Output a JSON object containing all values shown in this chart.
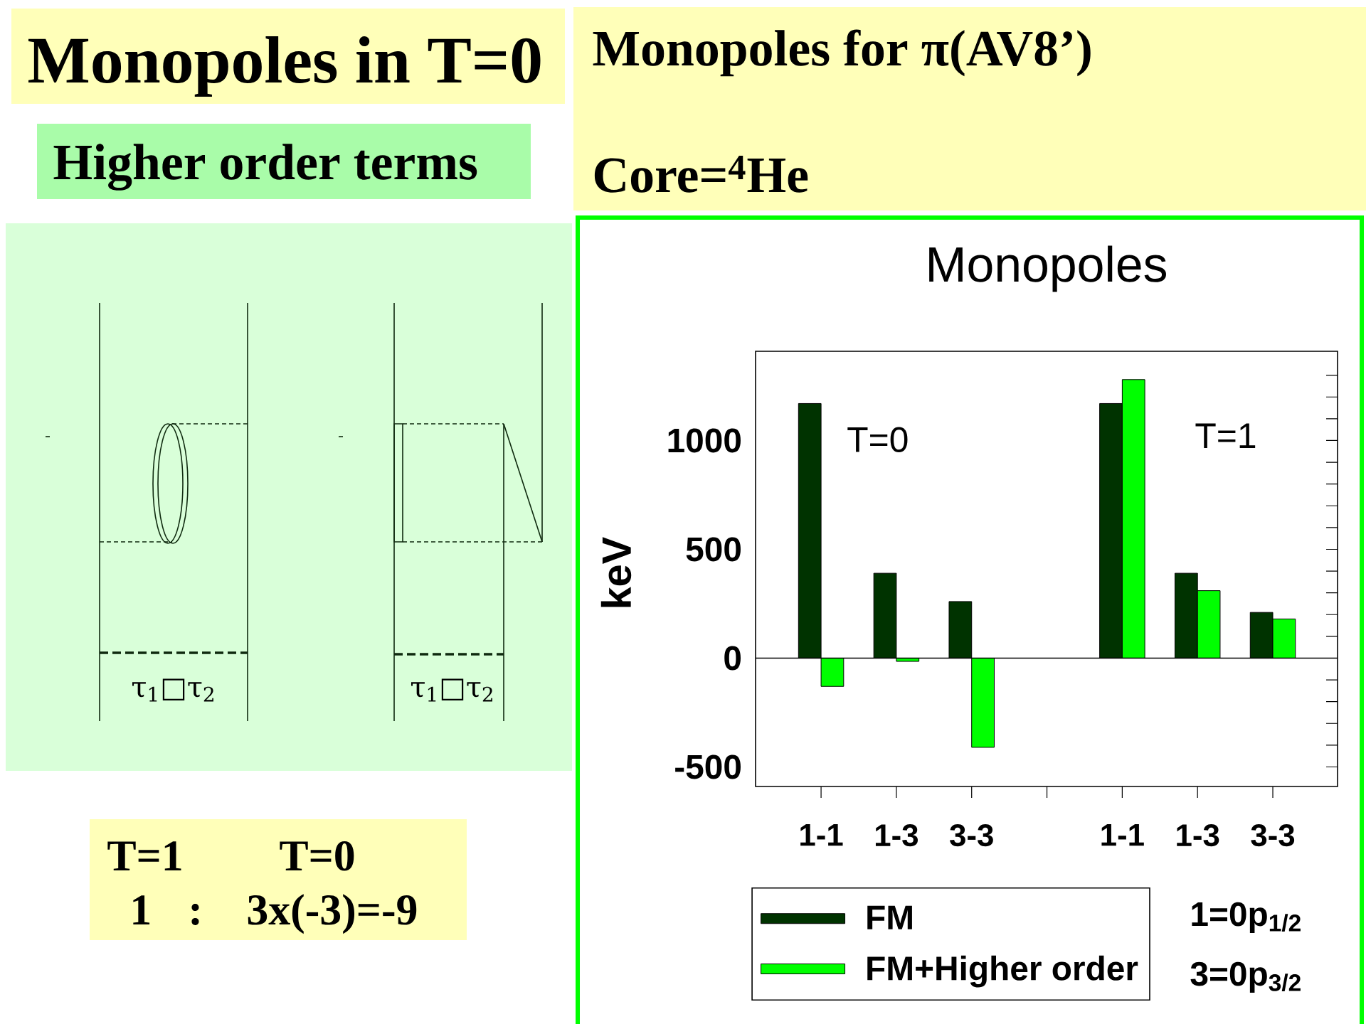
{
  "chart_data": {
    "type": "bar",
    "title": "Monopoles",
    "ylabel": "keV",
    "categories": [
      "1-1",
      "1-3",
      "3-3",
      null,
      "1-1",
      "1-3",
      "3-3"
    ],
    "series": [
      {
        "name": "FM",
        "color": "#003300",
        "values": [
          1170,
          390,
          260,
          null,
          1170,
          390,
          210
        ]
      },
      {
        "name": "FM+Higher order",
        "color": "#00ff00",
        "values": [
          -130,
          -15,
          -410,
          null,
          1280,
          310,
          180
        ]
      }
    ],
    "ylim": [
      -590,
      1410
    ],
    "yticks": [
      -500,
      {
        "value": -400,
        "label": null
      },
      {
        "value": -300,
        "label": null
      },
      {
        "value": -200,
        "label": null
      },
      {
        "value": -100,
        "label": null
      },
      0,
      {
        "value": 100,
        "label": null
      },
      {
        "value": 200,
        "label": null
      },
      {
        "value": 300,
        "label": null
      },
      {
        "value": 400,
        "label": null
      },
      500,
      {
        "value": 600,
        "label": null
      },
      {
        "value": 700,
        "label": null
      },
      {
        "value": 800,
        "label": null
      },
      {
        "value": 900,
        "label": null
      },
      1000,
      {
        "value": 1100,
        "label": null
      },
      {
        "value": 1200,
        "label": null
      },
      {
        "value": 1300,
        "label": null
      }
    ],
    "legend": "bottom",
    "ref_lines": [
      {
        "axis": "y",
        "value": 0
      }
    ],
    "annotations": [
      "Monopoles in T=0",
      "Higher order terms",
      "Monopoles for π(AV8’)",
      "Core=$^{4}$He",
      "T=0",
      "T=1",
      "1=0p$_{1/2}$",
      "3=0p$_{3/2}$",
      "T=1",
      "T=0",
      "1",
      ":",
      "3x(-3)=-9",
      "τ$_{1}$□τ$_{2}$",
      "τ$_{1}$□τ$_{2}$"
    ]
  }
}
